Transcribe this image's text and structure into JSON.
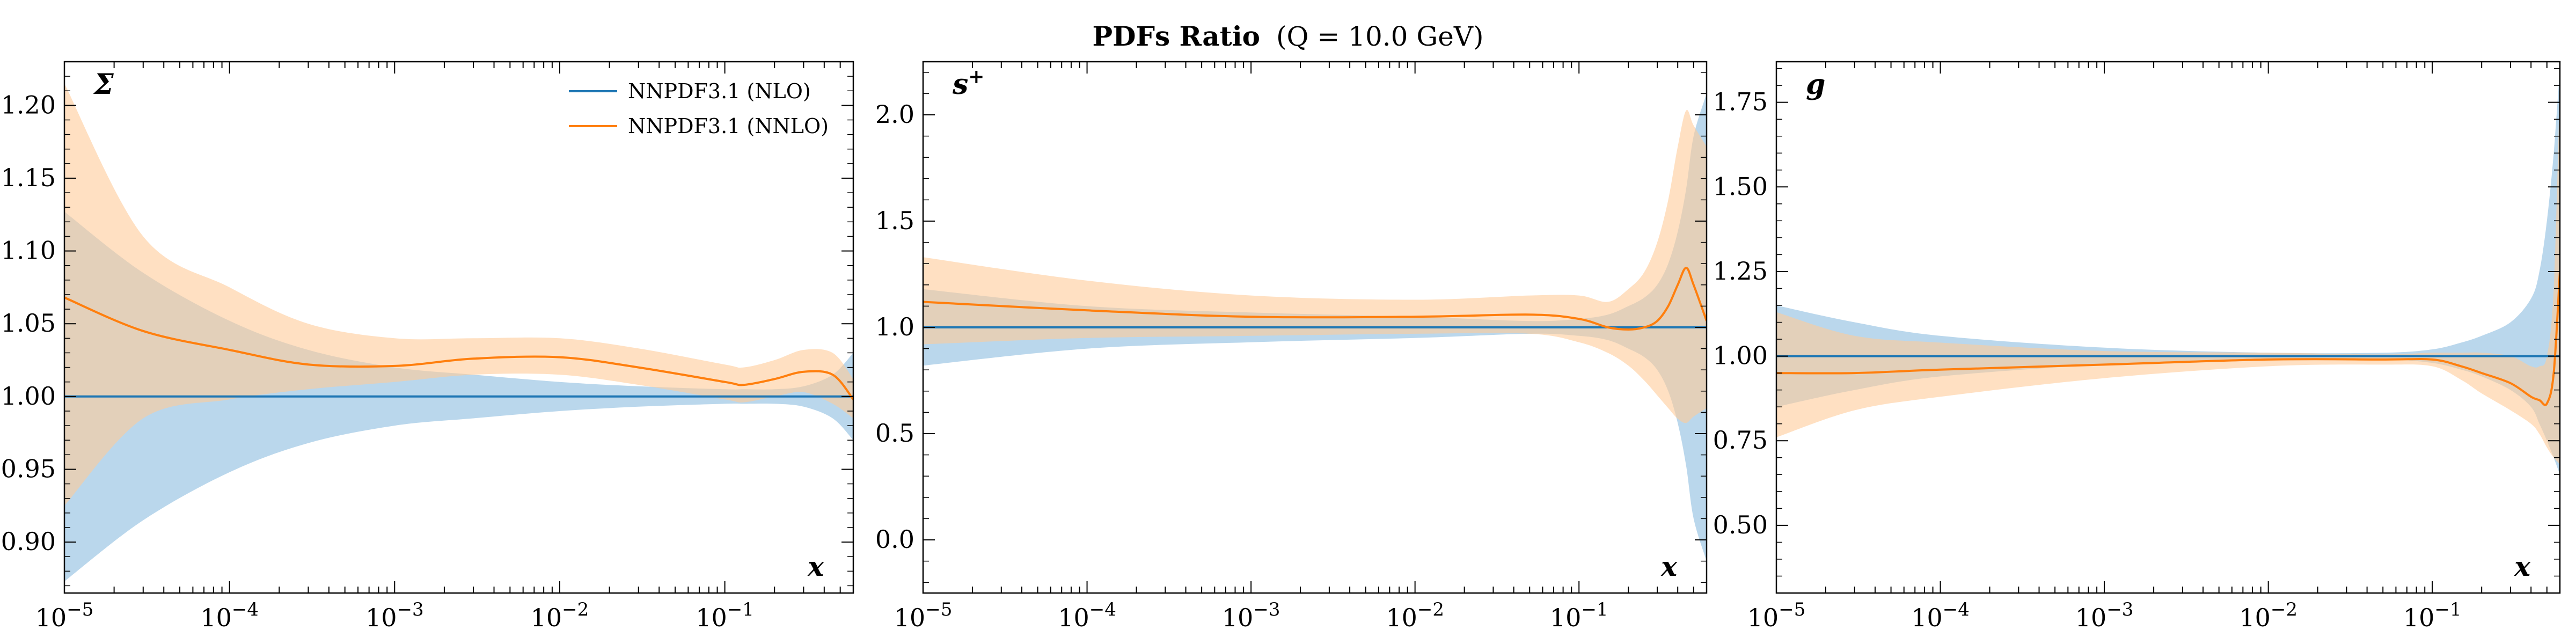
{
  "figure": {
    "title_bold": "PDFs Ratio",
    "title_rest": "(Q = 10.0 GeV)"
  },
  "legend": {
    "entries": [
      {
        "label": "NNPDF3.1 (NLO)",
        "color": "#1f77b4"
      },
      {
        "label": "NNPDF3.1 (NNLO)",
        "color": "#ff7f0e"
      }
    ]
  },
  "colors": {
    "nlo_line": "#1f77b4",
    "nlo_band": "#aed0e9",
    "nnlo_line": "#ff7f0e",
    "nnlo_band": "#ffcc99"
  },
  "chart_data": [
    {
      "type": "line",
      "panel_label": "Σ",
      "xlabel": "x",
      "xscale": "log",
      "xlim": [
        1e-05,
        0.6
      ],
      "ylim": [
        0.865,
        1.23
      ],
      "xticks": [
        1e-05,
        0.0001,
        0.001,
        0.01,
        0.1
      ],
      "xtick_labels": [
        "10−5",
        "10−4",
        "10−3",
        "10−2",
        "10−1"
      ],
      "yticks": [
        0.9,
        0.95,
        1.0,
        1.05,
        1.1,
        1.15,
        1.2
      ],
      "ytick_labels": [
        "0.90",
        "0.95",
        "1.00",
        "1.05",
        "1.10",
        "1.15",
        "1.20"
      ],
      "legend": "top-right",
      "x": [
        1e-05,
        3e-05,
        0.0001,
        0.0003,
        0.001,
        0.003,
        0.01,
        0.03,
        0.1,
        0.13,
        0.2,
        0.3,
        0.45,
        0.6
      ],
      "series": [
        {
          "name": "NNPDF3.1 (NLO)",
          "values": [
            1.0,
            1.0,
            1.0,
            1.0,
            1.0,
            1.0,
            1.0,
            1.0,
            1.0,
            1.0,
            1.0,
            1.0,
            1.0,
            1.0
          ],
          "lower": [
            0.873,
            0.915,
            0.948,
            0.968,
            0.98,
            0.985,
            0.99,
            0.993,
            0.995,
            0.995,
            0.995,
            0.993,
            0.985,
            0.97
          ],
          "upper": [
            1.127,
            1.085,
            1.052,
            1.032,
            1.02,
            1.015,
            1.01,
            1.007,
            1.005,
            1.005,
            1.005,
            1.007,
            1.015,
            1.03
          ]
        },
        {
          "name": "NNPDF3.1 (NNLO)",
          "values": [
            1.068,
            1.045,
            1.032,
            1.022,
            1.021,
            1.026,
            1.027,
            1.02,
            1.01,
            1.008,
            1.012,
            1.017,
            1.015,
            0.998
          ],
          "lower": [
            0.925,
            0.985,
            0.998,
            1.005,
            1.01,
            1.015,
            1.015,
            1.008,
            0.998,
            0.996,
            1.0,
            1.003,
            0.995,
            0.985
          ],
          "upper": [
            1.215,
            1.11,
            1.075,
            1.05,
            1.04,
            1.04,
            1.04,
            1.033,
            1.022,
            1.02,
            1.025,
            1.032,
            1.03,
            1.012
          ]
        }
      ]
    },
    {
      "type": "line",
      "panel_label": "s+",
      "xlabel": "x",
      "xscale": "log",
      "xlim": [
        1e-05,
        0.6
      ],
      "ylim": [
        -0.25,
        2.25
      ],
      "xticks": [
        1e-05,
        0.0001,
        0.001,
        0.01,
        0.1
      ],
      "xtick_labels": [
        "10−5",
        "10−4",
        "10−3",
        "10−2",
        "10−1"
      ],
      "yticks": [
        0.0,
        0.5,
        1.0,
        1.5,
        2.0
      ],
      "ytick_labels": [
        "0.0",
        "0.5",
        "1.0",
        "1.5",
        "2.0"
      ],
      "x": [
        1e-05,
        0.0001,
        0.001,
        0.01,
        0.05,
        0.1,
        0.15,
        0.2,
        0.25,
        0.3,
        0.35,
        0.4,
        0.45,
        0.5,
        0.6
      ],
      "series": [
        {
          "name": "NNPDF3.1 (NLO)",
          "values": [
            1.0,
            1.0,
            1.0,
            1.0,
            1.0,
            1.0,
            1.0,
            1.0,
            1.0,
            1.0,
            1.0,
            1.0,
            1.0,
            1.0,
            1.0
          ],
          "lower": [
            0.82,
            0.9,
            0.93,
            0.95,
            0.97,
            0.96,
            0.94,
            0.9,
            0.86,
            0.8,
            0.7,
            0.55,
            0.35,
            0.1,
            -0.1
          ],
          "upper": [
            1.18,
            1.1,
            1.07,
            1.05,
            1.03,
            1.04,
            1.06,
            1.1,
            1.14,
            1.2,
            1.3,
            1.45,
            1.65,
            1.9,
            2.1
          ]
        },
        {
          "name": "NNPDF3.1 (NNLO)",
          "values": [
            1.12,
            1.08,
            1.05,
            1.05,
            1.06,
            1.04,
            1.0,
            0.99,
            1.0,
            1.03,
            1.1,
            1.2,
            1.28,
            1.2,
            1.03
          ],
          "lower": [
            0.92,
            0.95,
            0.96,
            0.97,
            0.97,
            0.93,
            0.88,
            0.82,
            0.75,
            0.68,
            0.62,
            0.57,
            0.55,
            0.58,
            0.62
          ],
          "upper": [
            1.33,
            1.22,
            1.15,
            1.13,
            1.15,
            1.15,
            1.12,
            1.18,
            1.26,
            1.4,
            1.6,
            1.85,
            2.02,
            1.95,
            1.85
          ]
        }
      ]
    },
    {
      "type": "line",
      "panel_label": "g",
      "xlabel": "x",
      "xscale": "log",
      "xlim": [
        1e-05,
        0.6
      ],
      "ylim": [
        0.3,
        1.87
      ],
      "xticks": [
        1e-05,
        0.0001,
        0.001,
        0.01,
        0.1
      ],
      "xtick_labels": [
        "10−5",
        "10−4",
        "10−3",
        "10−2",
        "10−1"
      ],
      "yticks": [
        0.5,
        0.75,
        1.0,
        1.25,
        1.5,
        1.75
      ],
      "ytick_labels": [
        "0.50",
        "0.75",
        "1.00",
        "1.25",
        "1.50",
        "1.75"
      ],
      "x": [
        1e-05,
        3e-05,
        0.0001,
        0.001,
        0.01,
        0.05,
        0.1,
        0.15,
        0.2,
        0.3,
        0.4,
        0.45,
        0.5,
        0.55,
        0.6
      ],
      "series": [
        {
          "name": "NNPDF3.1 (NLO)",
          "values": [
            1.0,
            1.0,
            1.0,
            1.0,
            1.0,
            1.0,
            1.0,
            1.0,
            1.0,
            1.0,
            1.0,
            1.0,
            1.0,
            1.0,
            1.0
          ],
          "lower": [
            0.85,
            0.9,
            0.94,
            0.975,
            0.99,
            0.99,
            0.98,
            0.96,
            0.94,
            0.9,
            0.85,
            0.8,
            0.75,
            0.7,
            0.65
          ],
          "upper": [
            1.15,
            1.1,
            1.06,
            1.025,
            1.01,
            1.01,
            1.02,
            1.04,
            1.06,
            1.1,
            1.17,
            1.25,
            1.4,
            1.6,
            1.85
          ]
        },
        {
          "name": "NNPDF3.1 (NNLO)",
          "values": [
            0.95,
            0.95,
            0.96,
            0.975,
            0.99,
            0.99,
            0.99,
            0.97,
            0.95,
            0.92,
            0.88,
            0.87,
            0.86,
            0.95,
            1.25
          ],
          "lower": [
            0.76,
            0.84,
            0.88,
            0.935,
            0.97,
            0.975,
            0.97,
            0.93,
            0.89,
            0.84,
            0.8,
            0.77,
            0.73,
            0.7,
            0.68
          ],
          "upper": [
            1.13,
            1.06,
            1.04,
            1.015,
            1.01,
            1.005,
            1.01,
            1.01,
            1.01,
            1.0,
            0.97,
            0.97,
            1.0,
            1.2,
            1.8
          ]
        }
      ]
    }
  ]
}
